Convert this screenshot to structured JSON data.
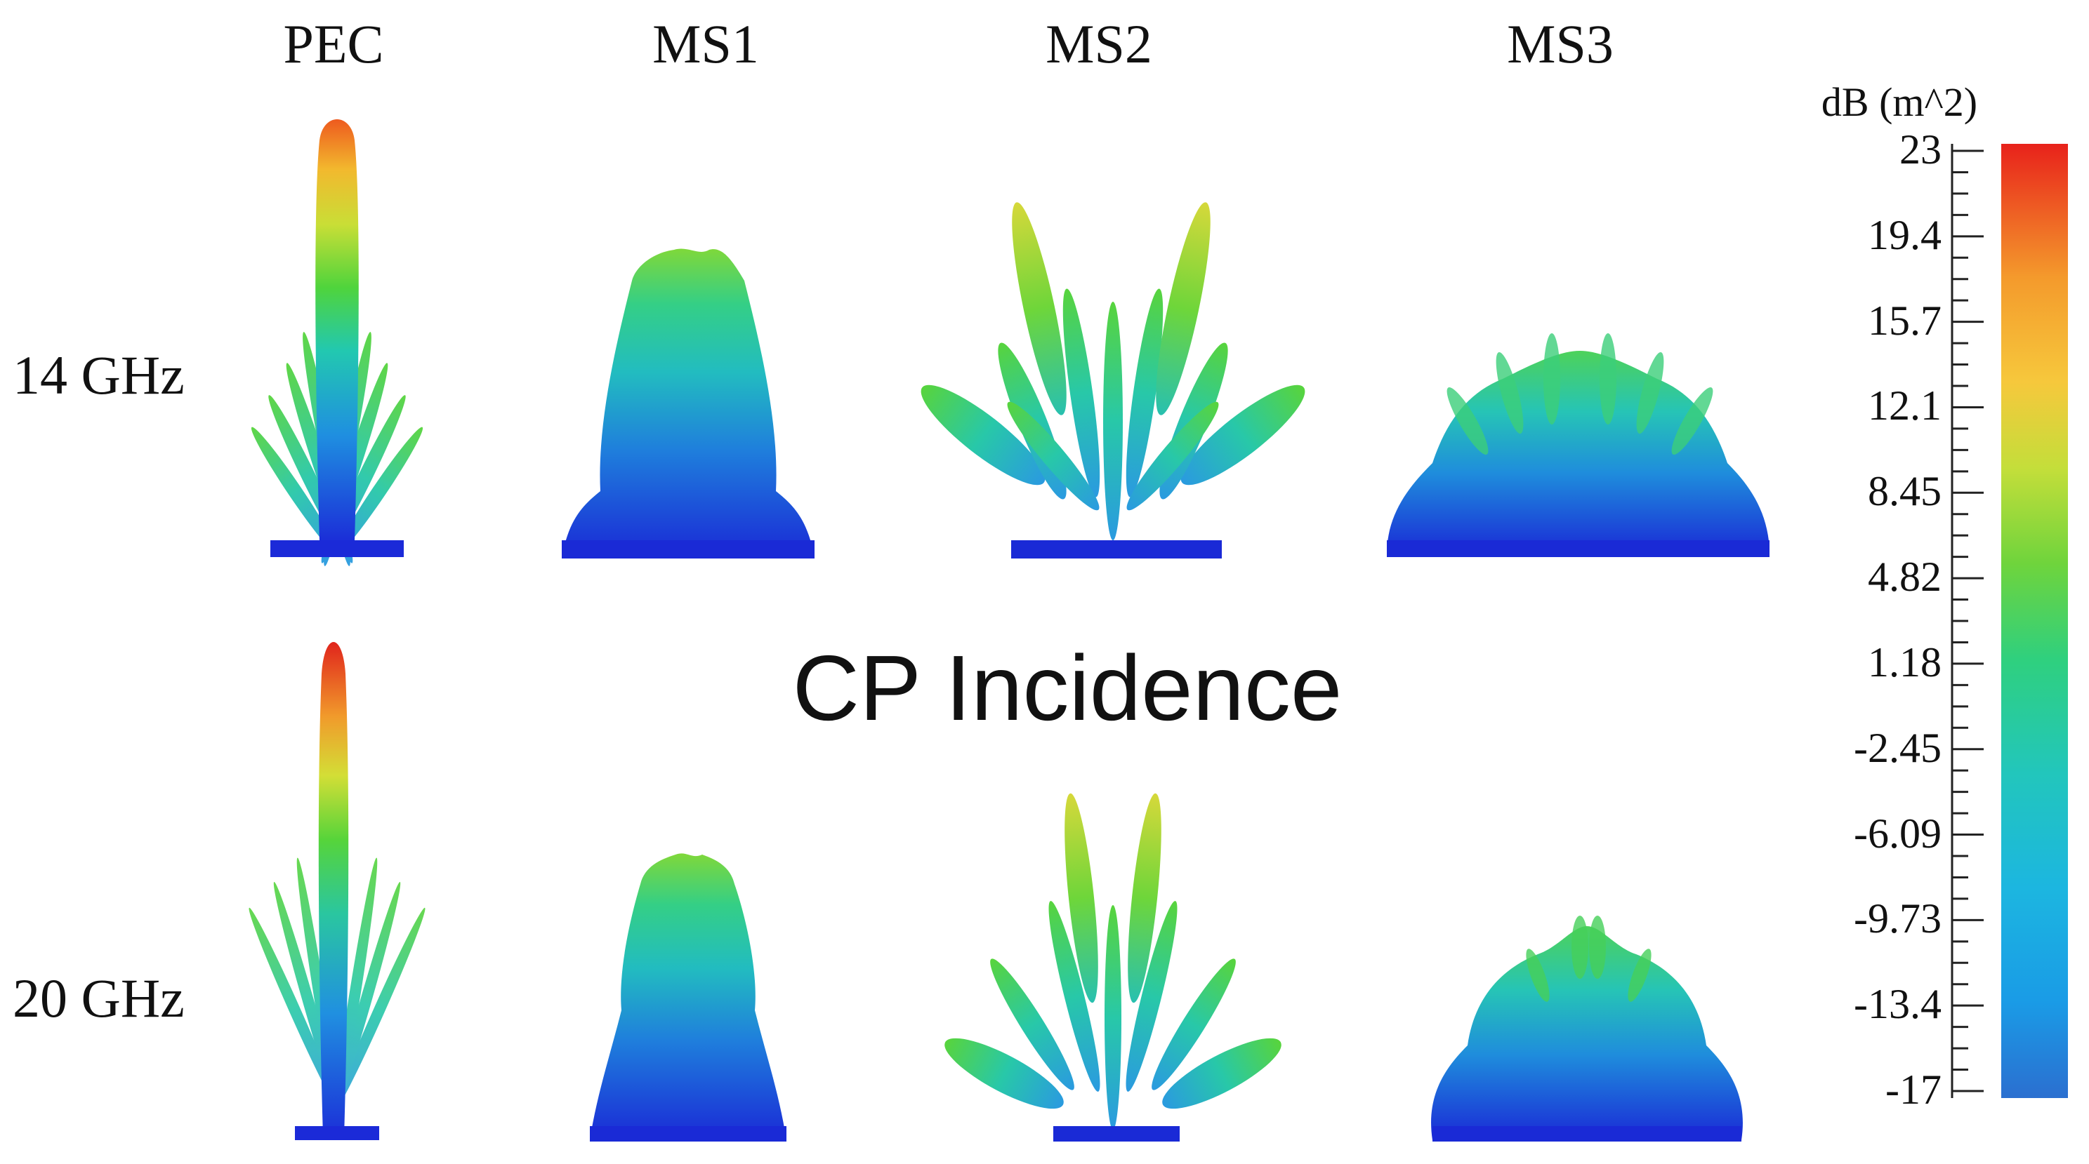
{
  "columns": [
    "PEC",
    "MS1",
    "MS2",
    "MS3"
  ],
  "rows": [
    "14 GHz",
    "20 GHz"
  ],
  "center_title": "CP Incidence",
  "colorbar": {
    "title": "dB (m^2)",
    "ticks": [
      "23",
      "19.4",
      "15.7",
      "12.1",
      "8.45",
      "4.82",
      "1.18",
      "-2.45",
      "-6.09",
      "-9.73",
      "-13.4",
      "-17"
    ],
    "range": [
      -17,
      23
    ],
    "colors": [
      "#2b6fd0",
      "#1aa9e8",
      "#22c3c0",
      "#30d07a",
      "#7fd53a",
      "#cde03a",
      "#f5c53a",
      "#f39a2b",
      "#ef5a1f",
      "#e8241c"
    ]
  }
}
